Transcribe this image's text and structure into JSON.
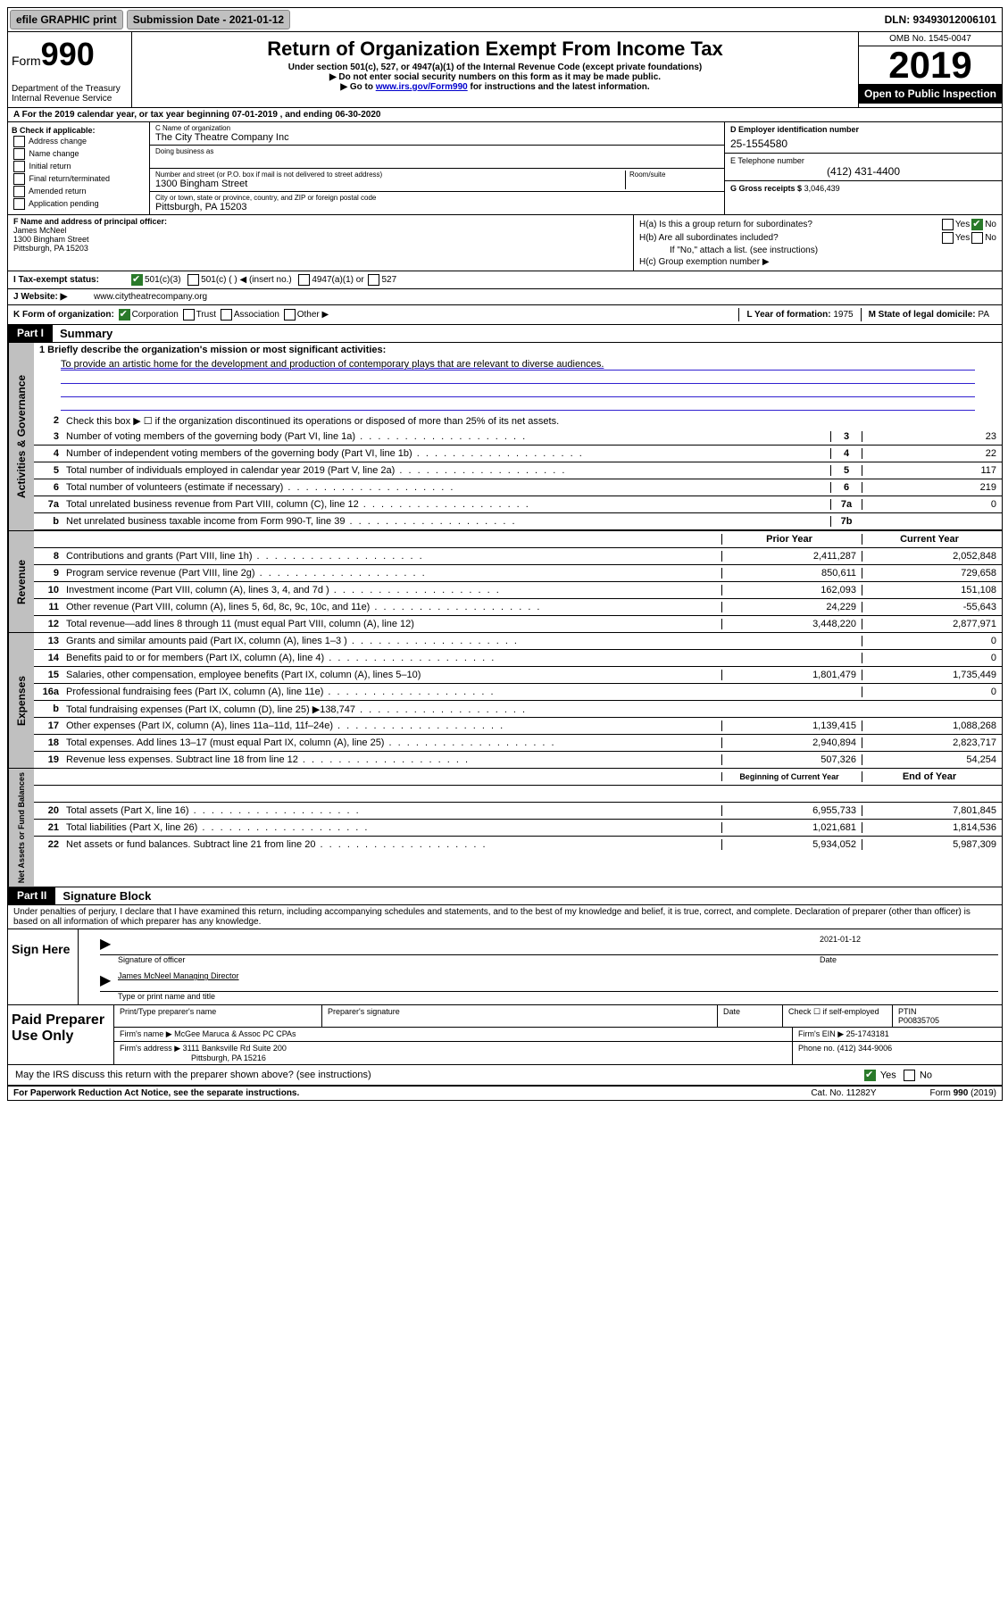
{
  "topbar": {
    "efile": "efile GRAPHIC print",
    "submission": "Submission Date - 2021-01-12",
    "dln": "DLN: 93493012006101"
  },
  "header": {
    "form_prefix": "Form",
    "form_number": "990",
    "dept1": "Department of the Treasury",
    "dept2": "Internal Revenue Service",
    "title": "Return of Organization Exempt From Income Tax",
    "sub1": "Under section 501(c), 527, or 4947(a)(1) of the Internal Revenue Code (except private foundations)",
    "sub2": "▶ Do not enter social security numbers on this form as it may be made public.",
    "sub3_pre": "▶ Go to ",
    "sub3_link": "www.irs.gov/Form990",
    "sub3_post": " for instructions and the latest information.",
    "omb": "OMB No. 1545-0047",
    "year": "2019",
    "open": "Open to Public Inspection"
  },
  "rowA": "A For the 2019 calendar year, or tax year beginning 07-01-2019    , and ending 06-30-2020",
  "colB": {
    "label": "B Check if applicable:",
    "opts": [
      "Address change",
      "Name change",
      "Initial return",
      "Final return/terminated",
      "Amended return",
      "Application pending"
    ]
  },
  "colC": {
    "name_label": "C Name of organization",
    "name": "The City Theatre Company Inc",
    "dba_label": "Doing business as",
    "addr_label": "Number and street (or P.O. box if mail is not delivered to street address)",
    "room_label": "Room/suite",
    "addr": "1300 Bingham Street",
    "city_label": "City or town, state or province, country, and ZIP or foreign postal code",
    "city": "Pittsburgh, PA  15203"
  },
  "colD": {
    "ein_label": "D Employer identification number",
    "ein": "25-1554580",
    "tel_label": "E Telephone number",
    "tel": "(412) 431-4400",
    "gross_label": "G Gross receipts $",
    "gross": "3,046,439"
  },
  "rowF": {
    "label": "F  Name and address of principal officer:",
    "name": "James McNeel",
    "addr1": "1300 Bingham Street",
    "addr2": "Pittsburgh, PA  15203"
  },
  "rowH": {
    "ha": "H(a)  Is this a group return for subordinates?",
    "hb": "H(b)  Are all subordinates included?",
    "hb_note": "If \"No,\" attach a list. (see instructions)",
    "hc": "H(c)  Group exemption number ▶"
  },
  "rowI": {
    "label": "I  Tax-exempt status:",
    "opt1": "501(c)(3)",
    "opt2": "501(c) (   ) ◀ (insert no.)",
    "opt3": "4947(a)(1) or",
    "opt4": "527"
  },
  "rowJ": {
    "label": "J  Website: ▶",
    "url": "www.citytheatrecompany.org"
  },
  "rowK": {
    "label": "K Form of organization:",
    "opts": [
      "Corporation",
      "Trust",
      "Association",
      "Other ▶"
    ],
    "L_label": "L Year of formation:",
    "L_val": "1975",
    "M_label": "M State of legal domicile:",
    "M_val": "PA"
  },
  "part1": {
    "label": "Part I",
    "title": "Summary",
    "line1_label": "1  Briefly describe the organization's mission or most significant activities:",
    "mission": "To provide an artistic home for the development and production of contemporary plays that are relevant to diverse audiences.",
    "line2": "Check this box ▶ ☐  if the organization discontinued its operations or disposed of more than 25% of its net assets.",
    "lines_gov": [
      {
        "n": "3",
        "d": "Number of voting members of the governing body (Part VI, line 1a)",
        "c": "3",
        "v": "23"
      },
      {
        "n": "4",
        "d": "Number of independent voting members of the governing body (Part VI, line 1b)",
        "c": "4",
        "v": "22"
      },
      {
        "n": "5",
        "d": "Total number of individuals employed in calendar year 2019 (Part V, line 2a)",
        "c": "5",
        "v": "117"
      },
      {
        "n": "6",
        "d": "Total number of volunteers (estimate if necessary)",
        "c": "6",
        "v": "219"
      },
      {
        "n": "7a",
        "d": "Total unrelated business revenue from Part VIII, column (C), line 12",
        "c": "7a",
        "v": "0"
      },
      {
        "n": "b",
        "d": "Net unrelated business taxable income from Form 990-T, line 39",
        "c": "7b",
        "v": ""
      }
    ],
    "prior_label": "Prior Year",
    "current_label": "Current Year",
    "lines_rev": [
      {
        "n": "8",
        "d": "Contributions and grants (Part VIII, line 1h)",
        "p": "2,411,287",
        "c": "2,052,848"
      },
      {
        "n": "9",
        "d": "Program service revenue (Part VIII, line 2g)",
        "p": "850,611",
        "c": "729,658"
      },
      {
        "n": "10",
        "d": "Investment income (Part VIII, column (A), lines 3, 4, and 7d )",
        "p": "162,093",
        "c": "151,108"
      },
      {
        "n": "11",
        "d": "Other revenue (Part VIII, column (A), lines 5, 6d, 8c, 9c, 10c, and 11e)",
        "p": "24,229",
        "c": "-55,643"
      },
      {
        "n": "12",
        "d": "Total revenue—add lines 8 through 11 (must equal Part VIII, column (A), line 12)",
        "p": "3,448,220",
        "c": "2,877,971"
      }
    ],
    "lines_exp": [
      {
        "n": "13",
        "d": "Grants and similar amounts paid (Part IX, column (A), lines 1–3 )",
        "p": "",
        "c": "0"
      },
      {
        "n": "14",
        "d": "Benefits paid to or for members (Part IX, column (A), line 4)",
        "p": "",
        "c": "0"
      },
      {
        "n": "15",
        "d": "Salaries, other compensation, employee benefits (Part IX, column (A), lines 5–10)",
        "p": "1,801,479",
        "c": "1,735,449"
      },
      {
        "n": "16a",
        "d": "Professional fundraising fees (Part IX, column (A), line 11e)",
        "p": "",
        "c": "0"
      },
      {
        "n": "b",
        "d": "Total fundraising expenses (Part IX, column (D), line 25) ▶138,747",
        "p": "shaded",
        "c": "shaded"
      },
      {
        "n": "17",
        "d": "Other expenses (Part IX, column (A), lines 11a–11d, 11f–24e)",
        "p": "1,139,415",
        "c": "1,088,268"
      },
      {
        "n": "18",
        "d": "Total expenses. Add lines 13–17 (must equal Part IX, column (A), line 25)",
        "p": "2,940,894",
        "c": "2,823,717"
      },
      {
        "n": "19",
        "d": "Revenue less expenses. Subtract line 18 from line 12",
        "p": "507,326",
        "c": "54,254"
      }
    ],
    "begin_label": "Beginning of Current Year",
    "end_label": "End of Year",
    "lines_net": [
      {
        "n": "20",
        "d": "Total assets (Part X, line 16)",
        "p": "6,955,733",
        "c": "7,801,845"
      },
      {
        "n": "21",
        "d": "Total liabilities (Part X, line 26)",
        "p": "1,021,681",
        "c": "1,814,536"
      },
      {
        "n": "22",
        "d": "Net assets or fund balances. Subtract line 21 from line 20",
        "p": "5,934,052",
        "c": "5,987,309"
      }
    ]
  },
  "part2": {
    "label": "Part II",
    "title": "Signature Block",
    "penalties": "Under penalties of perjury, I declare that I have examined this return, including accompanying schedules and statements, and to the best of my knowledge and belief, it is true, correct, and complete. Declaration of preparer (other than officer) is based on all information of which preparer has any knowledge.",
    "sign_here": "Sign Here",
    "sig_officer": "Signature of officer",
    "sig_date": "2021-01-12",
    "date_label": "Date",
    "officer_name": "James McNeel  Managing Director",
    "type_name": "Type or print name and title",
    "paid_label": "Paid Preparer Use Only",
    "prep_name_label": "Print/Type preparer's name",
    "prep_sig_label": "Preparer's signature",
    "prep_date_label": "Date",
    "prep_check": "Check ☐ if self-employed",
    "ptin_label": "PTIN",
    "ptin": "P00835705",
    "firm_name_label": "Firm's name    ▶",
    "firm_name": "McGee Maruca & Assoc PC CPAs",
    "firm_ein_label": "Firm's EIN ▶",
    "firm_ein": "25-1743181",
    "firm_addr_label": "Firm's address ▶",
    "firm_addr1": "3111 Banksville Rd Suite 200",
    "firm_addr2": "Pittsburgh, PA  15216",
    "firm_phone_label": "Phone no.",
    "firm_phone": "(412) 344-9006",
    "discuss": "May the IRS discuss this return with the preparer shown above? (see instructions)"
  },
  "footer": {
    "left": "For Paperwork Reduction Act Notice, see the separate instructions.",
    "mid": "Cat. No. 11282Y",
    "right": "Form 990 (2019)"
  },
  "vtabs": {
    "gov": "Activities & Governance",
    "rev": "Revenue",
    "exp": "Expenses",
    "net": "Net Assets or Fund Balances"
  }
}
